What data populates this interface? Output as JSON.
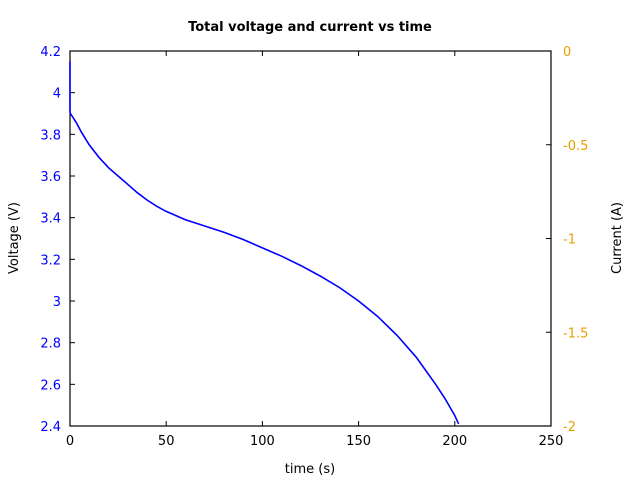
{
  "chart_data": {
    "type": "line",
    "title": "Total voltage and current vs time",
    "xlabel": "time (s)",
    "ylabel": "Voltage (V)",
    "y2label": "Current (A)",
    "xlim": [
      0,
      250
    ],
    "ylim": [
      2.4,
      4.2
    ],
    "y2lim": [
      -2,
      0
    ],
    "grid": false,
    "legend": null,
    "x_ticks": [
      "0",
      "50",
      "100",
      "150",
      "200",
      "250"
    ],
    "y_ticks": [
      "2.4",
      "2.6",
      "2.8",
      "3",
      "3.2",
      "3.4",
      "3.6",
      "3.8",
      "4",
      "4.2"
    ],
    "y2_ticks": [
      "-2",
      "-1.5",
      "-1",
      "-0.5",
      "0"
    ],
    "colors": {
      "voltage": "#0000ff",
      "current_axis": "#e6a000",
      "axes": "#000000"
    },
    "series": [
      {
        "name": "Voltage",
        "axis": "left",
        "x": [
          0,
          0,
          0.2,
          3,
          6,
          10,
          15,
          20,
          25,
          30,
          35,
          40,
          45,
          50,
          60,
          70,
          80,
          90,
          100,
          110,
          120,
          130,
          140,
          150,
          160,
          170,
          180,
          190,
          195,
          200,
          202
        ],
        "values": [
          4.15,
          3.91,
          3.9,
          3.86,
          3.81,
          3.75,
          3.69,
          3.64,
          3.6,
          3.56,
          3.52,
          3.485,
          3.455,
          3.43,
          3.39,
          3.36,
          3.33,
          3.295,
          3.255,
          3.215,
          3.17,
          3.12,
          3.065,
          3.0,
          2.925,
          2.835,
          2.73,
          2.6,
          2.53,
          2.45,
          2.41
        ]
      }
    ]
  }
}
